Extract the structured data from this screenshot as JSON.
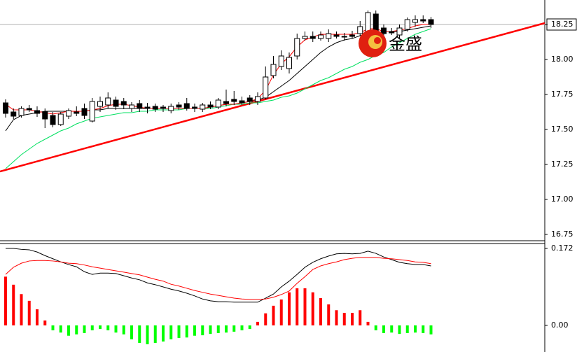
{
  "watermark": "金盛",
  "chart_data": [
    {
      "type": "candlestick",
      "categories": [
        null,
        null,
        null,
        null,
        null,
        null,
        null,
        null,
        null,
        null,
        null,
        null,
        null,
        null,
        null,
        null,
        null,
        null,
        null,
        null,
        null,
        null,
        null,
        null,
        null,
        null,
        null,
        null,
        null,
        null,
        null,
        null,
        null,
        null,
        null,
        null,
        null,
        null,
        null,
        null,
        null,
        null,
        null,
        null,
        null,
        null,
        null,
        null,
        null,
        null,
        null,
        null,
        null,
        null,
        null
      ],
      "open": [
        17.69,
        17.625,
        17.6,
        17.65,
        17.635,
        17.625,
        17.6,
        17.535,
        17.595,
        17.625,
        17.65,
        17.56,
        17.665,
        17.675,
        17.71,
        17.7,
        17.65,
        17.685,
        17.66,
        17.665,
        17.66,
        17.635,
        17.675,
        17.685,
        17.66,
        17.645,
        17.675,
        17.66,
        17.7,
        17.715,
        17.705,
        17.725,
        17.7,
        17.725,
        17.885,
        17.95,
        17.935,
        18.025,
        18.15,
        18.165,
        18.15,
        18.15,
        18.175,
        18.165,
        18.175,
        18.185,
        18.2,
        18.325,
        18.225,
        18.2,
        18.175,
        18.215,
        18.265,
        18.285,
        18.285
      ],
      "high": [
        17.715,
        17.65,
        17.665,
        17.675,
        17.665,
        17.65,
        17.625,
        17.625,
        17.65,
        17.665,
        17.685,
        17.725,
        17.735,
        17.765,
        17.735,
        17.725,
        17.695,
        17.71,
        17.69,
        17.685,
        17.675,
        17.685,
        17.695,
        17.725,
        17.685,
        17.69,
        17.7,
        17.725,
        17.785,
        17.775,
        17.735,
        17.745,
        17.765,
        17.95,
        18.025,
        18.065,
        18.05,
        18.185,
        18.2,
        18.2,
        18.2,
        18.215,
        18.2,
        18.19,
        18.205,
        18.275,
        18.35,
        18.35,
        18.25,
        18.225,
        18.25,
        18.3,
        18.315,
        18.315,
        18.305
      ],
      "low": [
        17.585,
        17.575,
        17.585,
        17.625,
        17.59,
        17.51,
        17.515,
        17.525,
        17.575,
        17.595,
        17.575,
        17.55,
        17.625,
        17.65,
        17.64,
        17.645,
        17.625,
        17.625,
        17.615,
        17.625,
        17.625,
        17.615,
        17.64,
        17.635,
        17.625,
        17.625,
        17.645,
        17.645,
        17.665,
        17.675,
        17.675,
        17.675,
        17.675,
        17.715,
        17.865,
        17.925,
        17.9,
        18.0,
        18.135,
        18.125,
        18.135,
        18.125,
        18.15,
        18.135,
        18.15,
        18.165,
        18.175,
        18.15,
        18.165,
        18.175,
        18.15,
        18.2,
        18.235,
        18.26,
        18.225
      ],
      "close": [
        17.615,
        17.595,
        17.65,
        17.64,
        17.615,
        17.575,
        17.535,
        17.61,
        17.635,
        17.615,
        17.6,
        17.7,
        17.7,
        17.725,
        17.665,
        17.675,
        17.675,
        17.65,
        17.65,
        17.645,
        17.65,
        17.665,
        17.66,
        17.65,
        17.65,
        17.675,
        17.66,
        17.71,
        17.685,
        17.7,
        17.69,
        17.7,
        17.735,
        17.875,
        17.965,
        18.025,
        18.015,
        18.15,
        18.165,
        18.15,
        18.175,
        18.185,
        18.165,
        18.16,
        18.165,
        18.235,
        18.335,
        18.175,
        18.185,
        18.19,
        18.225,
        18.285,
        18.285,
        18.275,
        18.25
      ],
      "up_color": "#ffffff",
      "down_color": "#000000",
      "series": [
        {
          "color": "#00e060",
          "values": [
            17.22,
            17.27,
            17.32,
            17.36,
            17.4,
            17.43,
            17.46,
            17.49,
            17.51,
            17.54,
            17.56,
            17.58,
            17.59,
            17.6,
            17.61,
            17.62,
            17.62,
            17.63,
            17.63,
            17.64,
            17.64,
            17.64,
            17.64,
            17.65,
            17.65,
            17.65,
            17.65,
            17.66,
            17.67,
            17.68,
            17.68,
            17.69,
            17.69,
            17.7,
            17.71,
            17.73,
            17.74,
            17.76,
            17.79,
            17.82,
            17.85,
            17.87,
            17.9,
            17.93,
            17.95,
            17.98,
            18.0,
            18.03,
            18.05,
            18.09,
            18.12,
            18.15,
            18.18,
            18.2,
            18.22
          ]
        },
        {
          "color": "#000000",
          "values": [
            17.49,
            17.57,
            17.6,
            17.61,
            17.62,
            17.63,
            17.63,
            17.63,
            17.63,
            17.63,
            17.63,
            17.64,
            17.64,
            17.65,
            17.65,
            17.65,
            17.65,
            17.65,
            17.65,
            17.65,
            17.65,
            17.65,
            17.65,
            17.65,
            17.65,
            17.65,
            17.66,
            17.67,
            17.68,
            17.68,
            17.69,
            17.7,
            17.71,
            17.73,
            17.77,
            17.81,
            17.85,
            17.9,
            17.95,
            18.0,
            18.05,
            18.09,
            18.12,
            18.14,
            18.15,
            18.17,
            18.18,
            18.19,
            18.2,
            18.2,
            18.2,
            18.21,
            18.22,
            18.23,
            18.24
          ]
        },
        {
          "color": "#ff0000",
          "values": [
            17.68,
            17.64,
            17.64,
            17.64,
            17.63,
            17.62,
            17.61,
            17.62,
            17.63,
            17.63,
            17.63,
            17.64,
            17.65,
            17.67,
            17.68,
            17.68,
            17.67,
            17.66,
            17.65,
            17.65,
            17.65,
            17.65,
            17.65,
            17.65,
            17.65,
            17.65,
            17.66,
            17.67,
            17.68,
            17.68,
            17.69,
            17.7,
            17.72,
            17.78,
            17.89,
            17.97,
            18.02,
            18.09,
            18.14,
            18.16,
            18.18,
            18.18,
            18.18,
            18.18,
            18.18,
            18.19,
            18.22,
            18.22,
            18.2,
            18.2,
            18.21,
            18.22,
            18.24,
            18.25,
            18.25
          ]
        }
      ],
      "trendline": {
        "color": "#ff0000",
        "x": [
          -0.71,
          68.44
        ],
        "values": [
          17.2,
          18.26
        ]
      },
      "ylim": [
        16.71,
        18.425
      ],
      "yticks": [
        16.75,
        {
          "value": 17,
          "label": "17.00"
        },
        17.25,
        {
          "value": 17.5,
          "label": "17.50"
        },
        17.75,
        {
          "value": 18,
          "label": "18.00"
        },
        18.25
      ]
    },
    {
      "type": "macd",
      "values": [
        0.109,
        0.091,
        0.07,
        0.055,
        0.036,
        0.011,
        -0.011,
        -0.016,
        -0.023,
        -0.02,
        -0.017,
        -0.011,
        -0.008,
        -0.011,
        -0.016,
        -0.02,
        -0.031,
        -0.039,
        -0.042,
        -0.039,
        -0.036,
        -0.031,
        -0.028,
        -0.027,
        -0.023,
        -0.022,
        -0.019,
        -0.017,
        -0.016,
        -0.014,
        -0.011,
        -0.008,
        0.008,
        0.027,
        0.044,
        0.058,
        0.074,
        0.083,
        0.083,
        0.074,
        0.061,
        0.047,
        0.034,
        0.028,
        0.028,
        0.034,
        0.008,
        -0.011,
        -0.017,
        -0.016,
        -0.019,
        -0.017,
        -0.016,
        -0.017,
        -0.02
      ],
      "up_color": "#ff0000",
      "down_color": "#00ff00",
      "series": [
        {
          "color": "#000000",
          "values": [
            0.172,
            0.172,
            0.17,
            0.169,
            0.164,
            0.156,
            0.149,
            0.142,
            0.136,
            0.131,
            0.12,
            0.114,
            0.117,
            0.117,
            0.116,
            0.111,
            0.106,
            0.102,
            0.095,
            0.091,
            0.086,
            0.081,
            0.077,
            0.072,
            0.066,
            0.059,
            0.055,
            0.053,
            0.053,
            0.052,
            0.052,
            0.052,
            0.052,
            0.061,
            0.07,
            0.086,
            0.099,
            0.114,
            0.13,
            0.141,
            0.149,
            0.155,
            0.16,
            0.161,
            0.16,
            0.161,
            0.166,
            0.161,
            0.153,
            0.147,
            0.141,
            0.138,
            0.136,
            0.136,
            0.133
          ]
        },
        {
          "color": "#ff0000",
          "values": [
            0.114,
            0.13,
            0.139,
            0.144,
            0.145,
            0.145,
            0.144,
            0.142,
            0.139,
            0.138,
            0.135,
            0.131,
            0.128,
            0.125,
            0.122,
            0.119,
            0.116,
            0.113,
            0.108,
            0.103,
            0.099,
            0.092,
            0.088,
            0.083,
            0.078,
            0.074,
            0.07,
            0.067,
            0.064,
            0.061,
            0.059,
            0.058,
            0.058,
            0.059,
            0.063,
            0.069,
            0.077,
            0.094,
            0.109,
            0.125,
            0.133,
            0.138,
            0.142,
            0.147,
            0.15,
            0.152,
            0.152,
            0.152,
            0.15,
            0.149,
            0.147,
            0.145,
            0.142,
            0.141,
            0.138
          ]
        }
      ],
      "ylim": [
        -0.0594,
        0.183
      ],
      "yticks": [
        {
          "value": 0,
          "label": "0.00"
        },
        0.172
      ]
    }
  ]
}
